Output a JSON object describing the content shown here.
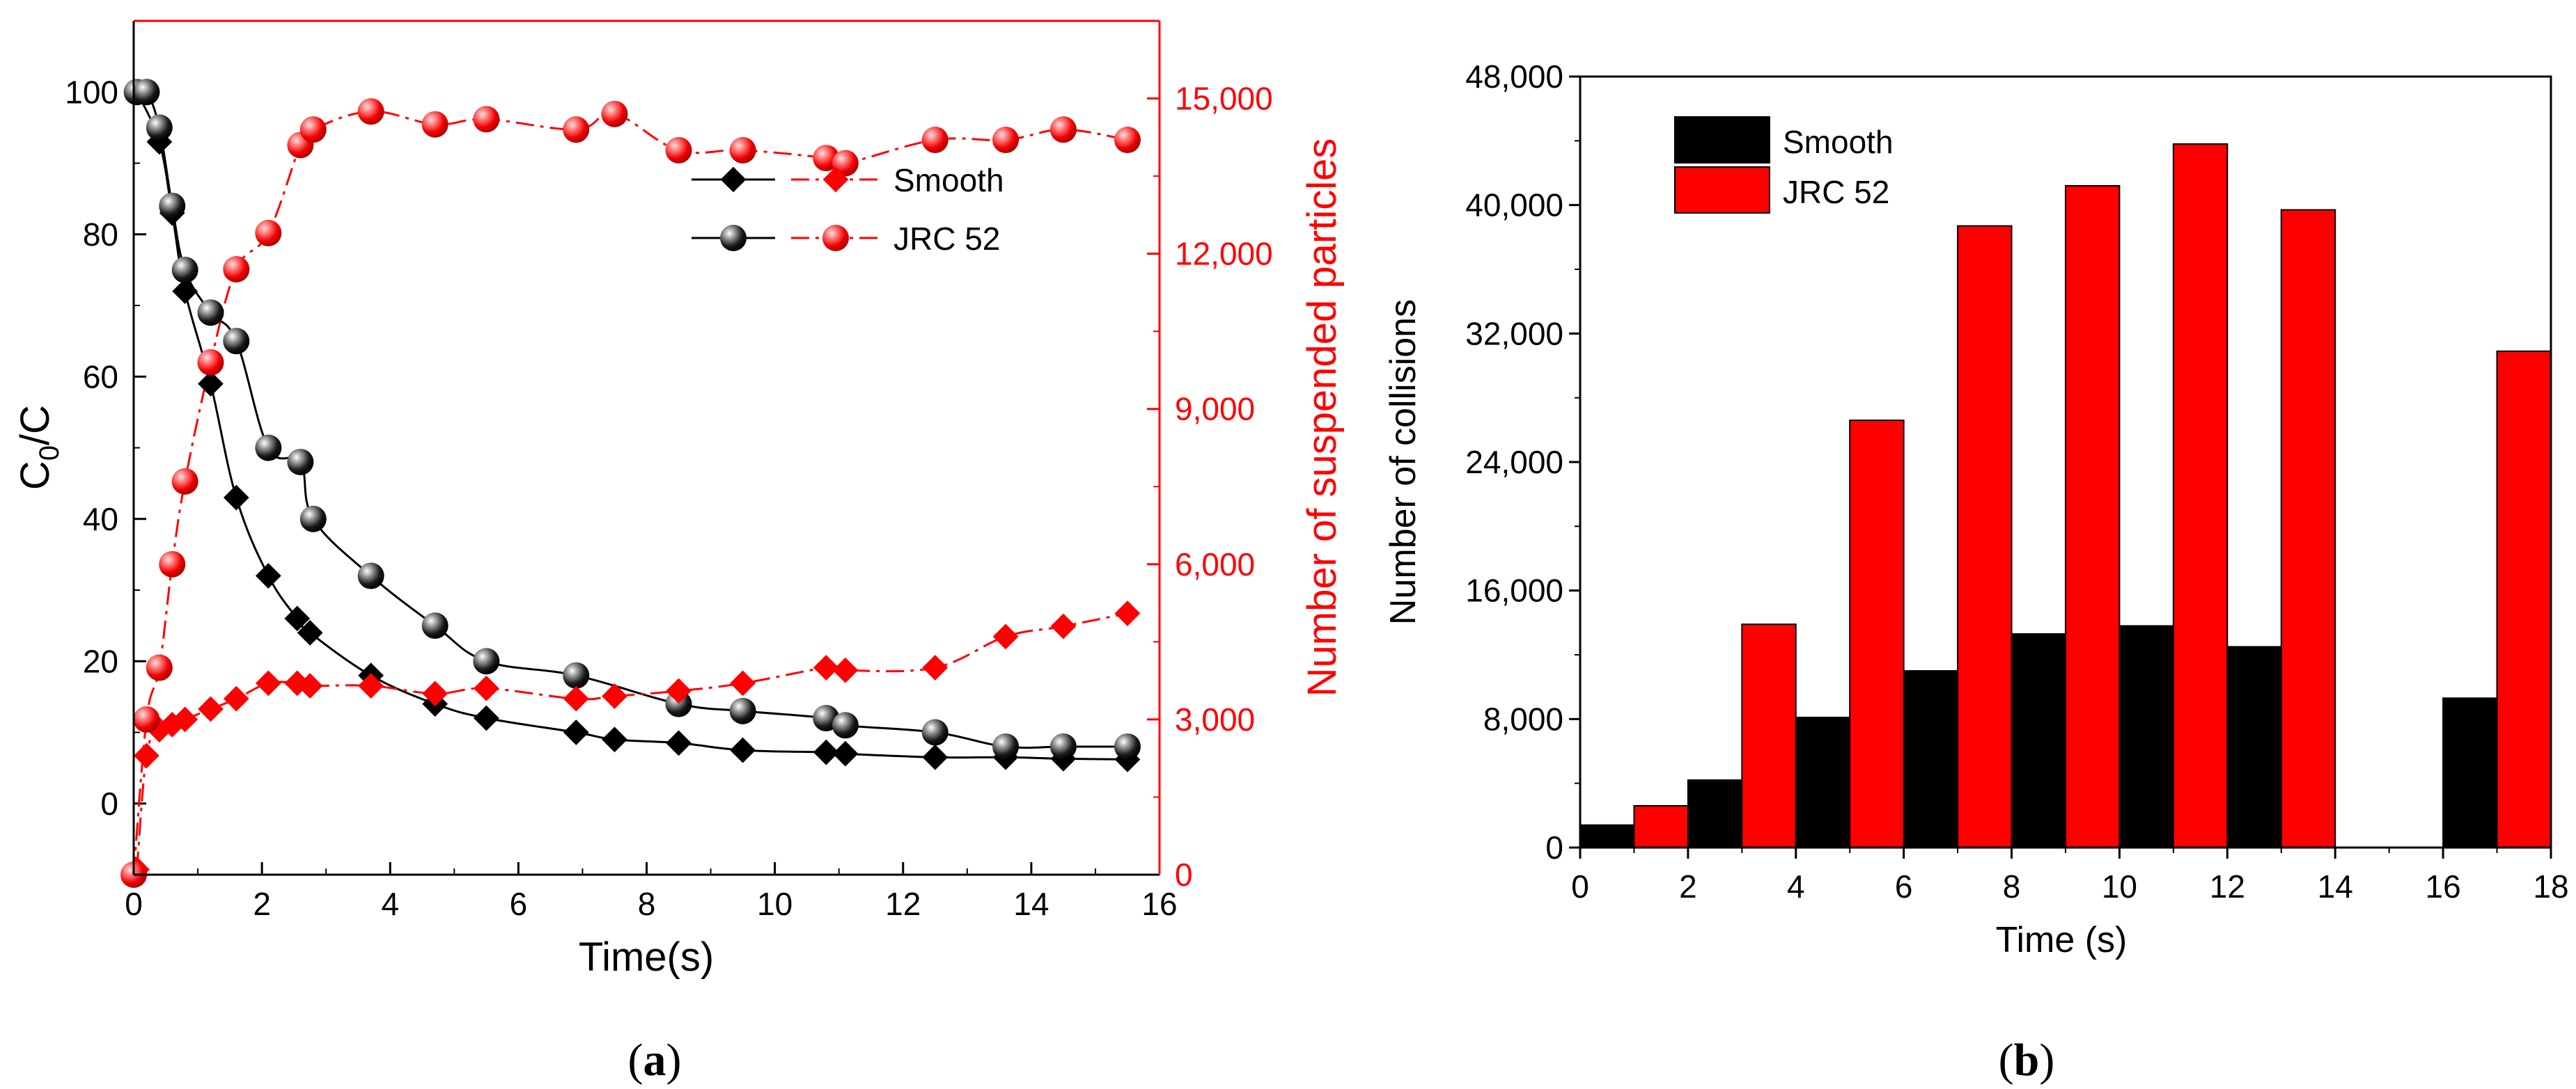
{
  "colors": {
    "black": "#000000",
    "red": "#ff0000",
    "sphere_highlight": "#ffb3b3"
  },
  "panels": {
    "a": {
      "caption_open": "(",
      "caption_letter": "a",
      "caption_close": ")"
    },
    "b": {
      "caption_open": "(",
      "caption_letter": "b",
      "caption_close": ")"
    }
  },
  "chart_data": [
    {
      "type": "line",
      "panel": "a",
      "xlabel": "Time(s)",
      "ylabel_left": {
        "base": "C",
        "sub": "0",
        "rest": "/C"
      },
      "ylabel_right": "Number of suspended particles",
      "xlim": [
        0,
        16
      ],
      "ylim_left": [
        -10,
        110
      ],
      "ylim_right": [
        0,
        16500
      ],
      "xticks": [
        0,
        2,
        4,
        6,
        8,
        10,
        12,
        14,
        16
      ],
      "xtick_labels": [
        "0",
        "2",
        "4",
        "6",
        "8",
        "10",
        "12",
        "14",
        "16"
      ],
      "yticks_left": [
        0,
        20,
        40,
        60,
        80,
        100
      ],
      "ytick_labels_left": [
        "0",
        "20",
        "40",
        "60",
        "80",
        "100"
      ],
      "yticks_right": [
        0,
        3000,
        6000,
        9000,
        12000,
        15000
      ],
      "ytick_labels_right": [
        "0",
        "3,000",
        "6,000",
        "9,000",
        "12,000",
        "15,000"
      ],
      "legend": {
        "position": "top-right",
        "entries": [
          {
            "label": "Smooth",
            "marker": "diamond"
          },
          {
            "label": "JRC 52",
            "marker": "sphere"
          }
        ]
      },
      "series": [
        {
          "name": "Smooth C0/C",
          "axis": "left",
          "color": "#000000",
          "marker": "diamond",
          "line": "solid",
          "x": [
            0.05,
            0.4,
            0.6,
            0.8,
            1.2,
            1.6,
            2.1,
            2.55,
            2.75,
            3.7,
            4.7,
            5.5,
            6.9,
            7.5,
            8.5,
            9.5,
            10.8,
            11.1,
            12.5,
            13.6,
            14.5,
            15.5
          ],
          "y": [
            100,
            93,
            83,
            72,
            59,
            43,
            32,
            26,
            24,
            18,
            14,
            12,
            10,
            9,
            8.5,
            7.5,
            7.2,
            7,
            6.5,
            6.5,
            6.3,
            6.2
          ]
        },
        {
          "name": "JRC 52 C0/C",
          "axis": "left",
          "color": "#000000",
          "marker": "sphere",
          "line": "solid",
          "x": [
            0.05,
            0.2,
            0.4,
            0.6,
            0.8,
            1.2,
            1.6,
            2.1,
            2.6,
            2.8,
            3.7,
            4.7,
            5.5,
            6.9,
            8.5,
            9.5,
            10.8,
            11.1,
            12.5,
            13.6,
            14.5,
            15.5
          ],
          "y": [
            100,
            100,
            95,
            84,
            75,
            69,
            65,
            50,
            48,
            40,
            32,
            25,
            20,
            18,
            14,
            13,
            12,
            11,
            10,
            8,
            8,
            8
          ]
        },
        {
          "name": "Smooth suspended particles",
          "axis": "right",
          "color": "#ff0000",
          "marker": "diamond",
          "line": "dashdot",
          "x": [
            0.05,
            0.2,
            0.4,
            0.6,
            0.8,
            1.2,
            1.6,
            2.1,
            2.55,
            2.75,
            3.7,
            4.7,
            5.5,
            6.9,
            7.5,
            8.5,
            9.5,
            10.8,
            11.1,
            12.5,
            13.6,
            14.5,
            15.5
          ],
          "y": [
            100,
            2300,
            2800,
            2900,
            3000,
            3200,
            3400,
            3700,
            3700,
            3650,
            3650,
            3500,
            3600,
            3400,
            3450,
            3550,
            3700,
            4000,
            3950,
            4000,
            4600,
            4800,
            5050
          ]
        },
        {
          "name": "JRC 52 suspended particles",
          "axis": "right",
          "color": "#ff0000",
          "marker": "sphere",
          "line": "dashdot",
          "x": [
            0,
            0.2,
            0.4,
            0.6,
            0.8,
            1.2,
            1.6,
            2.1,
            2.6,
            2.8,
            3.7,
            4.7,
            5.5,
            6.9,
            7.5,
            8.5,
            9.5,
            10.8,
            11.1,
            12.5,
            13.6,
            14.5,
            15.5
          ],
          "y": [
            0,
            3000,
            4000,
            6000,
            7600,
            9900,
            11700,
            12400,
            14100,
            14400,
            14750,
            14500,
            14600,
            14400,
            14700,
            14000,
            14000,
            13850,
            13750,
            14200,
            14200,
            14400,
            14200
          ]
        }
      ]
    },
    {
      "type": "bar",
      "panel": "b",
      "xlabel": "Time (s)",
      "ylabel": "Number of collisions",
      "xlim": [
        0,
        18
      ],
      "ylim": [
        0,
        48000
      ],
      "xticks": [
        0,
        2,
        4,
        6,
        8,
        10,
        12,
        14,
        16,
        18
      ],
      "xtick_labels": [
        "0",
        "2",
        "4",
        "6",
        "8",
        "10",
        "12",
        "14",
        "16",
        "18"
      ],
      "yticks": [
        0,
        8000,
        16000,
        24000,
        32000,
        40000,
        48000
      ],
      "ytick_labels": [
        "0",
        "8,000",
        "16,000",
        "24,000",
        "32,000",
        "40,000",
        "48,000"
      ],
      "bar_width": 1.0,
      "legend": {
        "position": "top-left",
        "entries": [
          {
            "label": "Smooth",
            "color": "#000000"
          },
          {
            "label": "JRC 52",
            "color": "#ff0000"
          }
        ]
      },
      "series": [
        {
          "name": "Smooth",
          "color": "#000000",
          "x_start": [
            0,
            2,
            4,
            6,
            8,
            10,
            12,
            14,
            16
          ],
          "values": [
            1400,
            4200,
            8100,
            11000,
            13300,
            13800,
            12500,
            null,
            9300
          ]
        },
        {
          "name": "JRC 52",
          "color": "#ff0000",
          "x_start": [
            1,
            3,
            5,
            7,
            9,
            11,
            13,
            15,
            17
          ],
          "values": [
            2600,
            13900,
            26600,
            38700,
            41200,
            43800,
            39700,
            null,
            30900
          ]
        }
      ]
    }
  ]
}
